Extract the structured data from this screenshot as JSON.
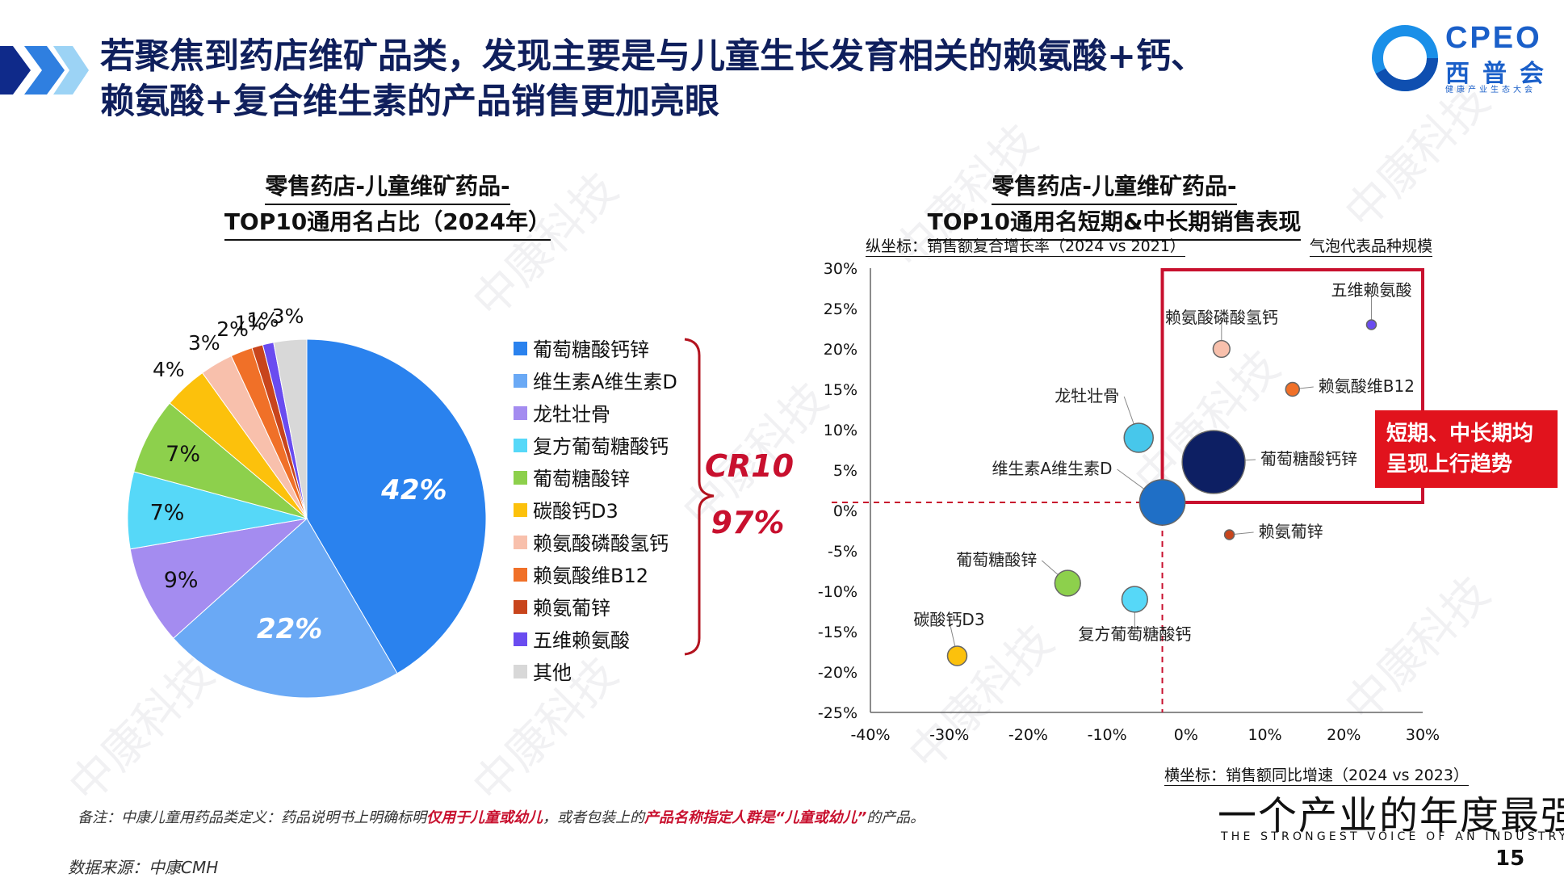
{
  "title": {
    "line1": "若聚焦到药店维矿品类，发现主要是与儿童生长发育相关的赖氨酸+钙、",
    "line2": "赖氨酸+复合维生素的产品销售更加亮眼"
  },
  "logo": {
    "brand": "CPEO",
    "brand_cn": "西普会",
    "brand_sub": "健康产业生态大会"
  },
  "pie_title": {
    "line1": "零售药店-儿童维矿药品-",
    "line2": "TOP10通用名占比（2024年）"
  },
  "bubble_title": {
    "line1": "零售药店-儿童维矿药品-",
    "line2": "TOP10通用名短期&中长期销售表现"
  },
  "y_axis_note": "纵坐标：销售额复合增长率（2024 vs 2021）",
  "bubble_note": "气泡代表品种规模",
  "x_axis_note": "横坐标：销售额同比增速（2024 vs 2023）",
  "cr10": {
    "label": "CR10",
    "value": "97%"
  },
  "callout": {
    "line1": "短期、中长期均",
    "line2": "呈现上行趋势"
  },
  "footnote": {
    "prefix": "备注：中康儿童用药品类定义：药品说明书上明确标明",
    "hl1": "仅用于儿童或幼儿",
    "mid": "，或者包装上的",
    "hl2": "产品名称指定人群是“儿童或幼儿”",
    "suffix": "的产品。"
  },
  "source": "数据来源：中康CMH",
  "slogan": "一个产业的年度最强音",
  "slogan_en": "THE STRONGEST VOICE OF AN INDUSTRY",
  "page_number": "15",
  "watermark_text": "中康科技",
  "chart_data": [
    {
      "type": "pie",
      "title": "零售药店-儿童维矿药品-TOP10通用名占比（2024年）",
      "slices": [
        {
          "label": "葡萄糖酸钙锌",
          "value": 42,
          "label_text": "42%",
          "color": "#2a82ee"
        },
        {
          "label": "维生素A维生素D",
          "value": 22,
          "label_text": "22%",
          "color": "#6aa9f5"
        },
        {
          "label": "龙牡壮骨",
          "value": 9,
          "label_text": "9%",
          "color": "#a48cf0"
        },
        {
          "label": "复方葡萄糖酸钙",
          "value": 7,
          "label_text": "7%",
          "color": "#56d8f8"
        },
        {
          "label": "葡萄糖酸锌",
          "value": 7,
          "label_text": "7%",
          "color": "#8dd04c"
        },
        {
          "label": "碳酸钙D3",
          "value": 4,
          "label_text": "4%",
          "color": "#fcc10c"
        },
        {
          "label": "赖氨酸磷酸氢钙",
          "value": 3,
          "label_text": "3%",
          "color": "#f8c0ac"
        },
        {
          "label": "赖氨酸维B12",
          "value": 2,
          "label_text": "2%",
          "color": "#f07028"
        },
        {
          "label": "赖氨葡锌",
          "value": 1,
          "label_text": "1%",
          "color": "#c8451c"
        },
        {
          "label": "五维赖氨酸",
          "value": 1,
          "label_text": "1%",
          "color": "#6a4cf0"
        },
        {
          "label": "其他",
          "value": 3,
          "label_text": "3%",
          "color": "#d8d8d8"
        }
      ]
    },
    {
      "type": "scatter",
      "title": "零售药店-儿童维矿药品-TOP10通用名短期&中长期销售表现",
      "xlabel": "横坐标：销售额同比增速（2024 vs 2023）",
      "ylabel": "纵坐标：销售额复合增长率（2024 vs 2021）",
      "xlim": [
        -40,
        30
      ],
      "ylim": [
        -25,
        30
      ],
      "x_ticks": [
        -40,
        -30,
        -20,
        -10,
        0,
        10,
        20,
        30
      ],
      "x_tick_labels": [
        "-40%",
        "-30%",
        "-20%",
        "-10%",
        "0%",
        "10%",
        "20%",
        "30%"
      ],
      "y_ticks": [
        30,
        25,
        20,
        15,
        10,
        5,
        0,
        -5,
        -10,
        -15,
        -20,
        -25
      ],
      "y_tick_labels": [
        "30%",
        "25%",
        "20%",
        "15%",
        "10%",
        "5%",
        "0%",
        "-5%",
        "-10%",
        "-15%",
        "-20%",
        "-25%"
      ],
      "reference_lines": {
        "x": -3,
        "y": 1
      },
      "points": [
        {
          "label": "葡萄糖酸钙锌",
          "x": 3.5,
          "y": 6,
          "size": 42,
          "color": "#0d1f63"
        },
        {
          "label": "维生素A维生素D",
          "x": -3,
          "y": 1,
          "size": 22,
          "color": "#1f6fc6"
        },
        {
          "label": "龙牡壮骨",
          "x": -6,
          "y": 9,
          "size": 9,
          "color": "#47c7eb"
        },
        {
          "label": "复方葡萄糖酸钙",
          "x": -6.5,
          "y": -11,
          "size": 7,
          "color": "#56d8f8"
        },
        {
          "label": "葡萄糖酸锌",
          "x": -15,
          "y": -9,
          "size": 7,
          "color": "#8dd04c"
        },
        {
          "label": "碳酸钙D3",
          "x": -29,
          "y": -18,
          "size": 4,
          "color": "#fcc10c"
        },
        {
          "label": "赖氨酸磷酸氢钙",
          "x": 4.5,
          "y": 20,
          "size": 3,
          "color": "#f8c0ac"
        },
        {
          "label": "赖氨酸维B12",
          "x": 13.5,
          "y": 15,
          "size": 2,
          "color": "#f07028"
        },
        {
          "label": "赖氨葡锌",
          "x": 5.5,
          "y": -3,
          "size": 1,
          "color": "#c8451c"
        },
        {
          "label": "五维赖氨酸",
          "x": 23.5,
          "y": 23,
          "size": 1,
          "color": "#6a4cf0"
        }
      ]
    }
  ]
}
